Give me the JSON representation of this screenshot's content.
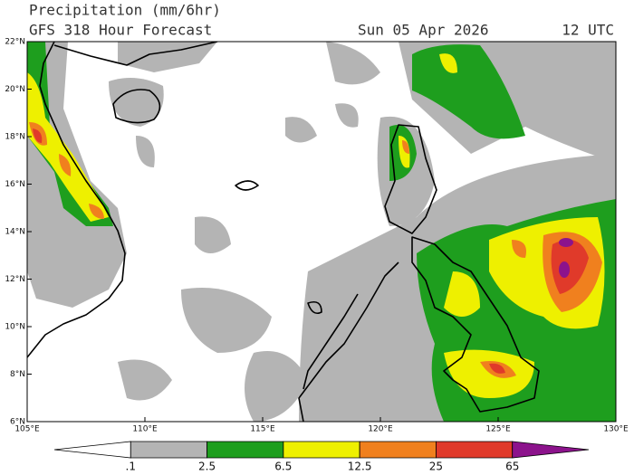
{
  "header": {
    "title": "Precipitation (mm/6hr)",
    "model": "GFS 318 Hour Forecast",
    "date": "Sun 05 Apr 2026",
    "time": "12 UTC"
  },
  "map": {
    "lat_labels": [
      "22°N",
      "20°N",
      "18°N",
      "16°N",
      "14°N",
      "12°N",
      "10°N",
      "8°N",
      "6°N"
    ],
    "lon_labels": [
      "105°E",
      "110°E",
      "115°E",
      "120°E",
      "125°E",
      "130°E"
    ]
  },
  "colorbar": {
    "labels": [
      ".1",
      "2.5",
      "6.5",
      "12.5",
      "25",
      "65"
    ],
    "colors": [
      "#ffffff",
      "#b4b4b4",
      "#1e9e1e",
      "#eef000",
      "#f0801e",
      "#e03a2a",
      "#8c138c"
    ]
  }
}
